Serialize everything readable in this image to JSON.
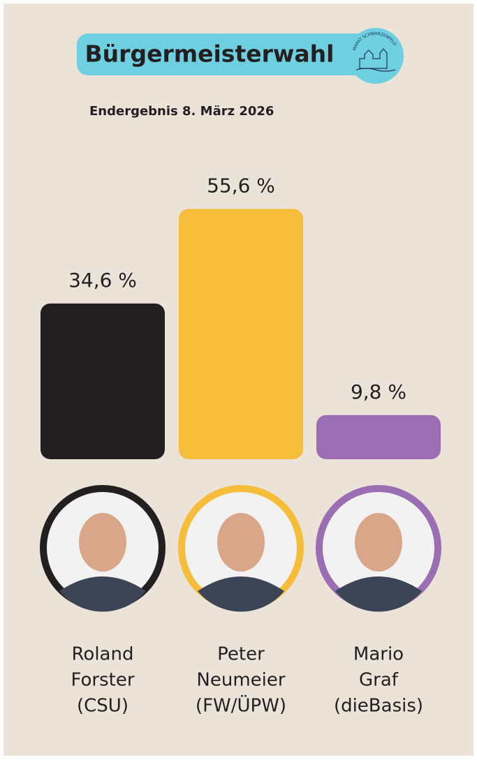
{
  "chart_data": {
    "type": "bar",
    "title": "Bürgermeisterwahl",
    "logo_text": "MARKT SCHWARZENFELD",
    "subtitle": "Endergebnis 8. März 2026",
    "categories": [
      [
        "Roland",
        "Forster",
        "(CSU)"
      ],
      [
        "Peter",
        "Neumeier",
        "(FW/ÜPW)"
      ],
      [
        "Mario",
        "Graf",
        "(dieBasis)"
      ]
    ],
    "values": [
      34.6,
      55.6,
      9.8
    ],
    "value_labels": [
      "34,6 %",
      "55,6 %",
      "9,8 %"
    ],
    "colors": [
      "#231f20",
      "#f6bd3b",
      "#9b6db3"
    ]
  }
}
